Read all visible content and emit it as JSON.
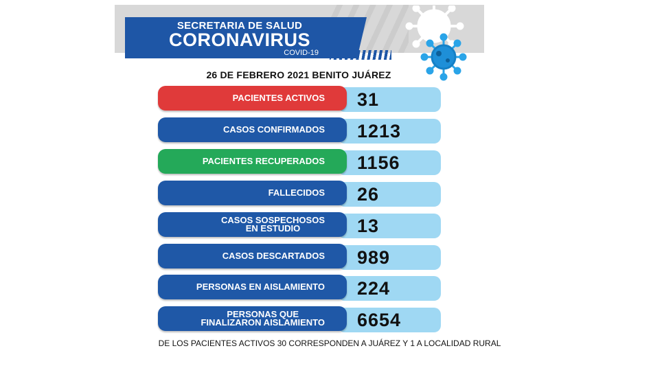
{
  "header": {
    "line1": "SECRETARIA DE SALUD",
    "line2": "CORONAVIRUS",
    "line3": "COVID-19"
  },
  "date_line": "26 DE FEBRERO 2021 BENITO JUÁREZ",
  "rows": [
    {
      "label": "PACIENTES ACTIVOS",
      "value": "31",
      "color": "#e03a3a"
    },
    {
      "label": "CASOS CONFIRMADOS",
      "value": "1213",
      "color": "#1f58a7"
    },
    {
      "label": "PACIENTES RECUPERADOS",
      "value": "1156",
      "color": "#24a959"
    },
    {
      "label": "FALLECIDOS",
      "value": "26",
      "color": "#1f58a7"
    },
    {
      "label_line1": "CASOS SOSPECHOSOS",
      "label_line2": "EN ESTUDIO",
      "value": "13",
      "color": "#1f58a7"
    },
    {
      "label": "CASOS DESCARTADOS",
      "value": "989",
      "color": "#1f58a7"
    },
    {
      "label": "PERSONAS EN AISLAMIENTO",
      "value": "224",
      "color": "#1f58a7"
    },
    {
      "label_line1": "PERSONAS QUE",
      "label_line2": "FINALIZARON AISLAMIENTO",
      "value": "6654",
      "color": "#1f58a7"
    }
  ],
  "footer_note": "DE LOS PACIENTES ACTIVOS 30 CORRESPONDEN A JUÁREZ Y 1 A LOCALIDAD RURAL",
  "icons": [
    "virus-icon",
    "virus-icon"
  ],
  "colors": {
    "accent_blue": "#1e56a6",
    "value_bg": "#9fd8f3",
    "active_red": "#e03a3a",
    "recovered_green": "#24a959"
  }
}
